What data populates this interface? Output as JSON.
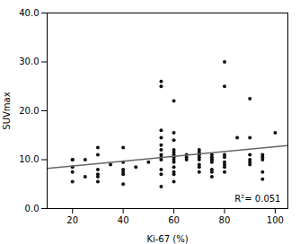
{
  "chart_data": {
    "type": "scatter",
    "xlabel": "Ki-67 (%)",
    "ylabel": "SUVmax",
    "annotation": "R²= 0.051",
    "xlim": [
      10,
      105
    ],
    "ylim": [
      0.0,
      40.0
    ],
    "xticks": [
      20,
      40,
      60,
      80,
      100
    ],
    "yticks": [
      {
        "value": 0.0,
        "label": "0.0"
      },
      {
        "value": 10.0,
        "label": "10.0"
      },
      {
        "value": 20.0,
        "label": "20.0"
      },
      {
        "value": 30.0,
        "label": "30.0"
      },
      {
        "value": 40.0,
        "label": "40.0"
      }
    ],
    "grid": false,
    "series": [
      {
        "type": "scatter",
        "color": "#111111",
        "x": [
          20,
          20,
          20,
          20,
          20,
          25,
          25,
          30,
          30,
          30,
          30,
          30,
          30,
          35,
          40,
          40,
          40,
          40,
          40,
          40,
          45,
          50,
          55,
          55,
          55,
          55,
          55,
          55,
          55,
          55,
          55,
          55,
          55,
          55,
          60,
          60,
          60,
          60,
          60,
          60,
          60,
          60,
          60,
          60,
          60,
          60,
          60,
          65,
          65,
          65,
          70,
          70,
          70,
          70,
          70,
          70,
          70,
          70,
          75,
          75,
          75,
          75,
          75,
          75,
          75,
          75,
          80,
          80,
          80,
          80,
          80,
          80,
          80,
          80,
          85,
          90,
          90,
          90,
          90,
          90,
          90,
          95,
          95,
          95,
          95,
          95,
          100
        ],
        "values": [
          7.5,
          10.0,
          10.0,
          8.5,
          5.5,
          10.0,
          6.5,
          7.0,
          5.5,
          11.0,
          12.5,
          6.5,
          8.0,
          9.0,
          8.0,
          7.5,
          9.5,
          7.0,
          12.5,
          5.0,
          8.5,
          9.5,
          10.0,
          8.0,
          7.0,
          10.5,
          12.0,
          13.0,
          14.5,
          16.0,
          25.0,
          26.0,
          11.0,
          4.5,
          10.0,
          10.5,
          11.0,
          12.0,
          7.0,
          8.5,
          9.5,
          11.5,
          14.0,
          15.5,
          7.5,
          5.5,
          22.0,
          10.0,
          10.5,
          11.0,
          10.0,
          10.5,
          11.0,
          11.5,
          12.0,
          7.5,
          8.5,
          9.0,
          10.0,
          9.5,
          10.0,
          10.5,
          11.0,
          7.5,
          8.0,
          6.5,
          10.5,
          11.0,
          9.0,
          9.5,
          8.5,
          7.5,
          30.0,
          25.0,
          14.5,
          10.0,
          11.0,
          14.5,
          9.0,
          9.5,
          22.5,
          10.0,
          10.5,
          11.0,
          7.5,
          6.0,
          15.5
        ]
      },
      {
        "type": "line",
        "color": "#666666",
        "x": [
          10,
          105
        ],
        "values": [
          8.2166,
          12.8795
        ]
      }
    ]
  }
}
